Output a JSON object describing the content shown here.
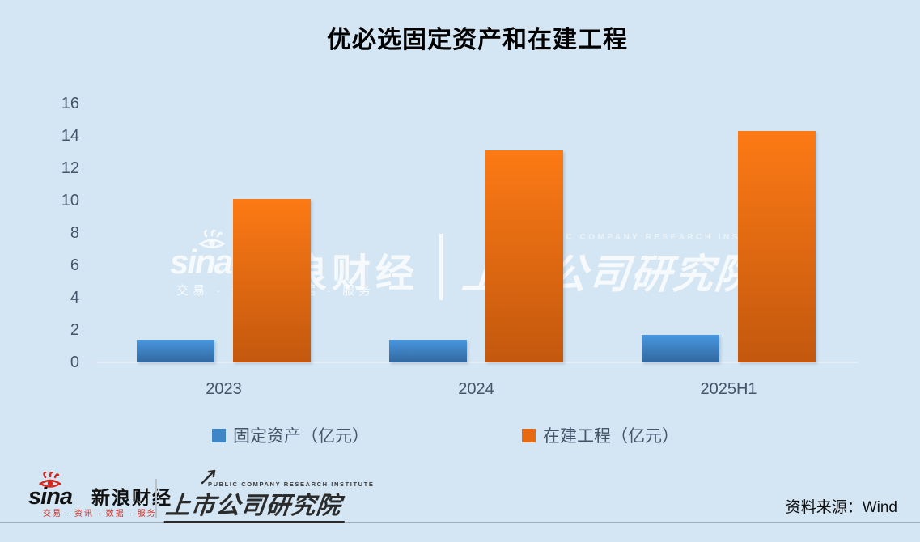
{
  "title": "优必选固定资产和在建工程",
  "chart_data": {
    "type": "bar",
    "categories": [
      "2023",
      "2024",
      "2025H1"
    ],
    "series": [
      {
        "name": "固定资产（亿元）",
        "values": [
          1.4,
          1.4,
          1.7
        ],
        "color_top": "#4897e0",
        "color_bottom": "#32689f",
        "legend_color": "#3e86c6"
      },
      {
        "name": "在建工程（亿元）",
        "values": [
          10.1,
          13.1,
          14.3
        ],
        "color_top": "#fc7a15",
        "color_bottom": "#c3580e",
        "legend_color": "#e8690f"
      }
    ],
    "title": "优必选固定资产和在建工程",
    "xlabel": "",
    "ylabel": "",
    "ylim": [
      0,
      16
    ],
    "yticks": [
      0,
      2,
      4,
      6,
      8,
      10,
      12,
      14,
      16
    ],
    "grid": false,
    "legend_position": "bottom"
  },
  "watermark": {
    "sina_brand": "sina",
    "sina_cn": "新浪财经",
    "tagline": "交易 · 资讯 · 数据 · 服务",
    "institute_en": "PUBLIC COMPANY RESEARCH INSTITUTE",
    "institute": "上市公司研究院"
  },
  "footer": {
    "sina_brand": "sina",
    "sina_cn": "新浪财经",
    "tagline": "交易 · 资讯 · 数据 · 服务",
    "institute_en": "PUBLIC COMPANY RESEARCH INSTITUTE",
    "institute": "上市公司研究院",
    "source": "资料来源：Wind"
  },
  "colors": {
    "background": "#d4e6f3",
    "axis_text": "#44546a",
    "title_text": "#000000",
    "sina_red": "#d5281e",
    "footer_text": "#121212"
  }
}
